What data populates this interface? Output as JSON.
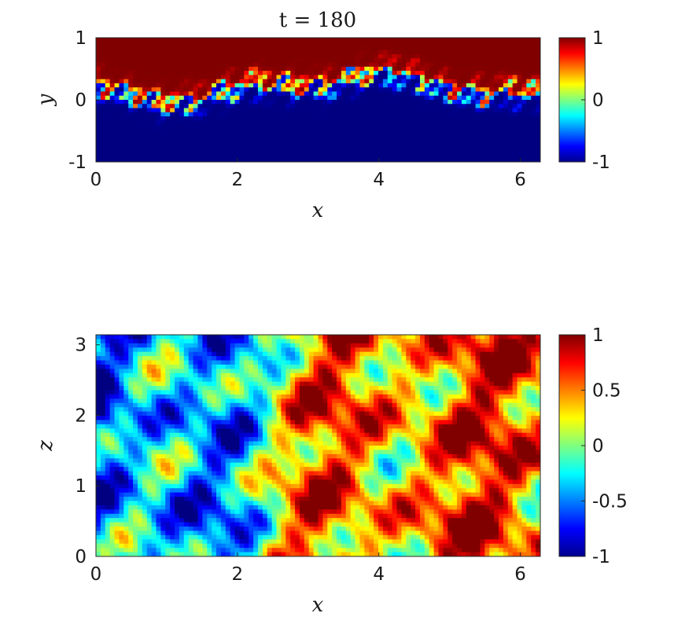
{
  "chart_data": [
    {
      "type": "heatmap",
      "title": "t = 180",
      "xlabel": "x",
      "ylabel": "y",
      "xlim": [
        0,
        6.2832
      ],
      "ylim": [
        -1,
        1
      ],
      "x_ticks": [
        "0",
        "2",
        "4",
        "6"
      ],
      "y_ticks": [
        "-1",
        "0",
        "1"
      ],
      "colorbar": {
        "range": [
          -1,
          1
        ],
        "ticks": [
          "-1",
          "0",
          "1"
        ],
        "colormap": "jet"
      },
      "field_description_key": "mixing-layer"
    },
    {
      "type": "heatmap",
      "title": "",
      "xlabel": "x",
      "ylabel": "z",
      "xlim": [
        0,
        6.2832
      ],
      "ylim": [
        0,
        3.1416
      ],
      "x_ticks": [
        "0",
        "2",
        "4",
        "6"
      ],
      "y_ticks": [
        "0",
        "1",
        "2",
        "3"
      ],
      "colorbar": {
        "range": [
          -1,
          1
        ],
        "ticks": [
          "-1",
          "-0.5",
          "0",
          "0.5",
          "1"
        ],
        "colormap": "jet"
      },
      "field_description_key": "horizontal-slice"
    }
  ]
}
